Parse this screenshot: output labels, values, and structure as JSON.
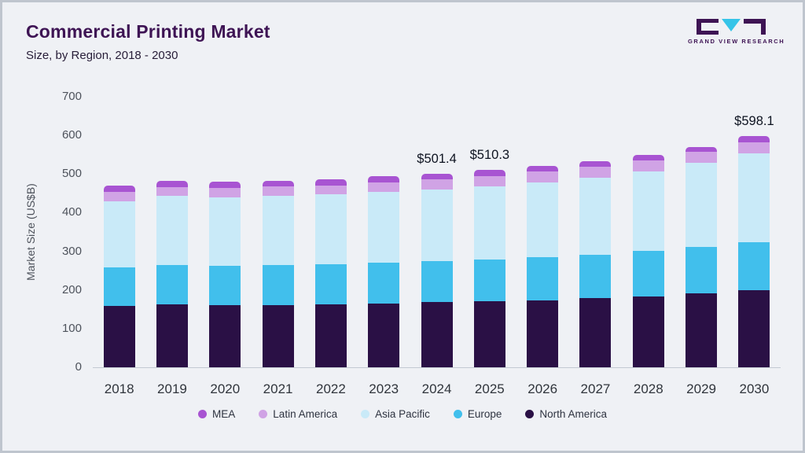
{
  "header": {
    "title": "Commercial Printing Market",
    "subtitle": "Size, by Region, 2018 - 2030",
    "logo_text": "GRAND VIEW RESEARCH"
  },
  "colors": {
    "title": "#3e1454",
    "logo_accent": "#35c4e8",
    "background": "#eff1f5"
  },
  "chart_data": {
    "type": "bar",
    "stacked": true,
    "title": "Commercial Printing Market Size, by Region, 2018 - 2030",
    "xlabel": "",
    "ylabel": "Market Size (US$B)",
    "ylim": [
      0,
      700
    ],
    "yticks": [
      0,
      100,
      200,
      300,
      400,
      500,
      600,
      700
    ],
    "grid": false,
    "legend_position": "bottom",
    "categories": [
      "2018",
      "2019",
      "2020",
      "2021",
      "2022",
      "2023",
      "2024",
      "2025",
      "2026",
      "2027",
      "2028",
      "2029",
      "2030"
    ],
    "series": [
      {
        "name": "North America",
        "color": "#2a1045",
        "values": [
          158,
          162,
          160,
          161,
          163,
          165,
          168,
          170,
          174,
          179,
          184,
          192,
          200
        ]
      },
      {
        "name": "Europe",
        "color": "#41bfec",
        "values": [
          100,
          103,
          103,
          104,
          104,
          106,
          106,
          109,
          111,
          113,
          117,
          119,
          123
        ]
      },
      {
        "name": "Asia Pacific",
        "color": "#c9eaf8",
        "values": [
          172,
          178,
          177,
          178,
          180,
          182,
          186,
          190,
          194,
          199,
          206,
          218,
          230
        ]
      },
      {
        "name": "Latin America",
        "color": "#d0a3e5",
        "values": [
          24,
          24,
          25,
          25,
          24,
          25,
          26,
          26,
          27,
          28,
          28,
          28,
          29
        ]
      },
      {
        "name": "MEA",
        "color": "#a854d2",
        "values": [
          16,
          16,
          16,
          15,
          15,
          16,
          15.4,
          15.3,
          14,
          14,
          14,
          13,
          16.1
        ]
      }
    ],
    "value_labels": [
      "",
      "",
      "",
      "",
      "",
      "",
      "$501.4",
      "$510.3",
      "",
      "",
      "",
      "",
      "$598.1"
    ],
    "legend": [
      {
        "label": "MEA",
        "color": "#a854d2"
      },
      {
        "label": "Latin America",
        "color": "#d0a3e5"
      },
      {
        "label": "Asia Pacific",
        "color": "#c9eaf8"
      },
      {
        "label": "Europe",
        "color": "#41bfec"
      },
      {
        "label": "North America",
        "color": "#2a1045"
      }
    ]
  }
}
